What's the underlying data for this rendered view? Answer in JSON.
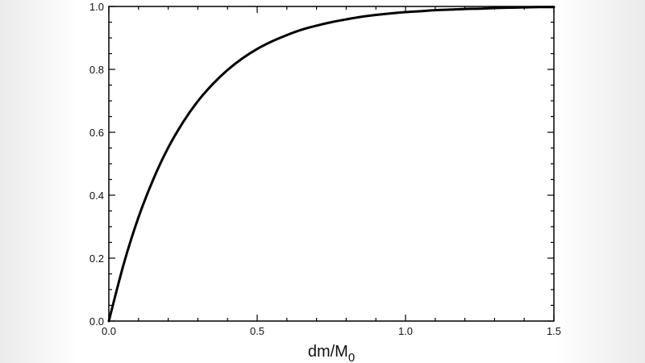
{
  "chart_data": {
    "type": "line",
    "title": "",
    "xlabel": "dm/M",
    "xlabel_subscript": "0",
    "ylabel": "",
    "xlim": [
      0,
      1.5
    ],
    "ylim": [
      0,
      1.0
    ],
    "x_ticks": [
      0.0,
      0.5,
      1.0,
      1.5
    ],
    "x_tick_labels": [
      "0.0",
      "0.5",
      "1.0",
      "1.5"
    ],
    "y_ticks": [
      0.0,
      0.2,
      0.4,
      0.6,
      0.8,
      1.0
    ],
    "y_tick_labels": [
      "0.0",
      "0.2",
      "0.4",
      "0.6",
      "0.8",
      "1.0"
    ],
    "grid": false,
    "series": [
      {
        "color": "#000000",
        "x": [
          0.0,
          0.05,
          0.1,
          0.15,
          0.2,
          0.25,
          0.3,
          0.35,
          0.4,
          0.45,
          0.5,
          0.55,
          0.6,
          0.65,
          0.7,
          0.75,
          0.8,
          0.85,
          0.9,
          0.95,
          1.0,
          1.05,
          1.1,
          1.15,
          1.2,
          1.25,
          1.3,
          1.35,
          1.4,
          1.45,
          1.5
        ],
        "y": [
          0.0,
          0.181,
          0.33,
          0.451,
          0.551,
          0.632,
          0.699,
          0.753,
          0.798,
          0.835,
          0.865,
          0.889,
          0.909,
          0.926,
          0.939,
          0.95,
          0.959,
          0.967,
          0.973,
          0.978,
          0.982,
          0.985,
          0.988,
          0.99,
          0.992,
          0.993,
          0.995,
          0.996,
          0.997,
          0.998,
          0.998
        ]
      }
    ]
  }
}
